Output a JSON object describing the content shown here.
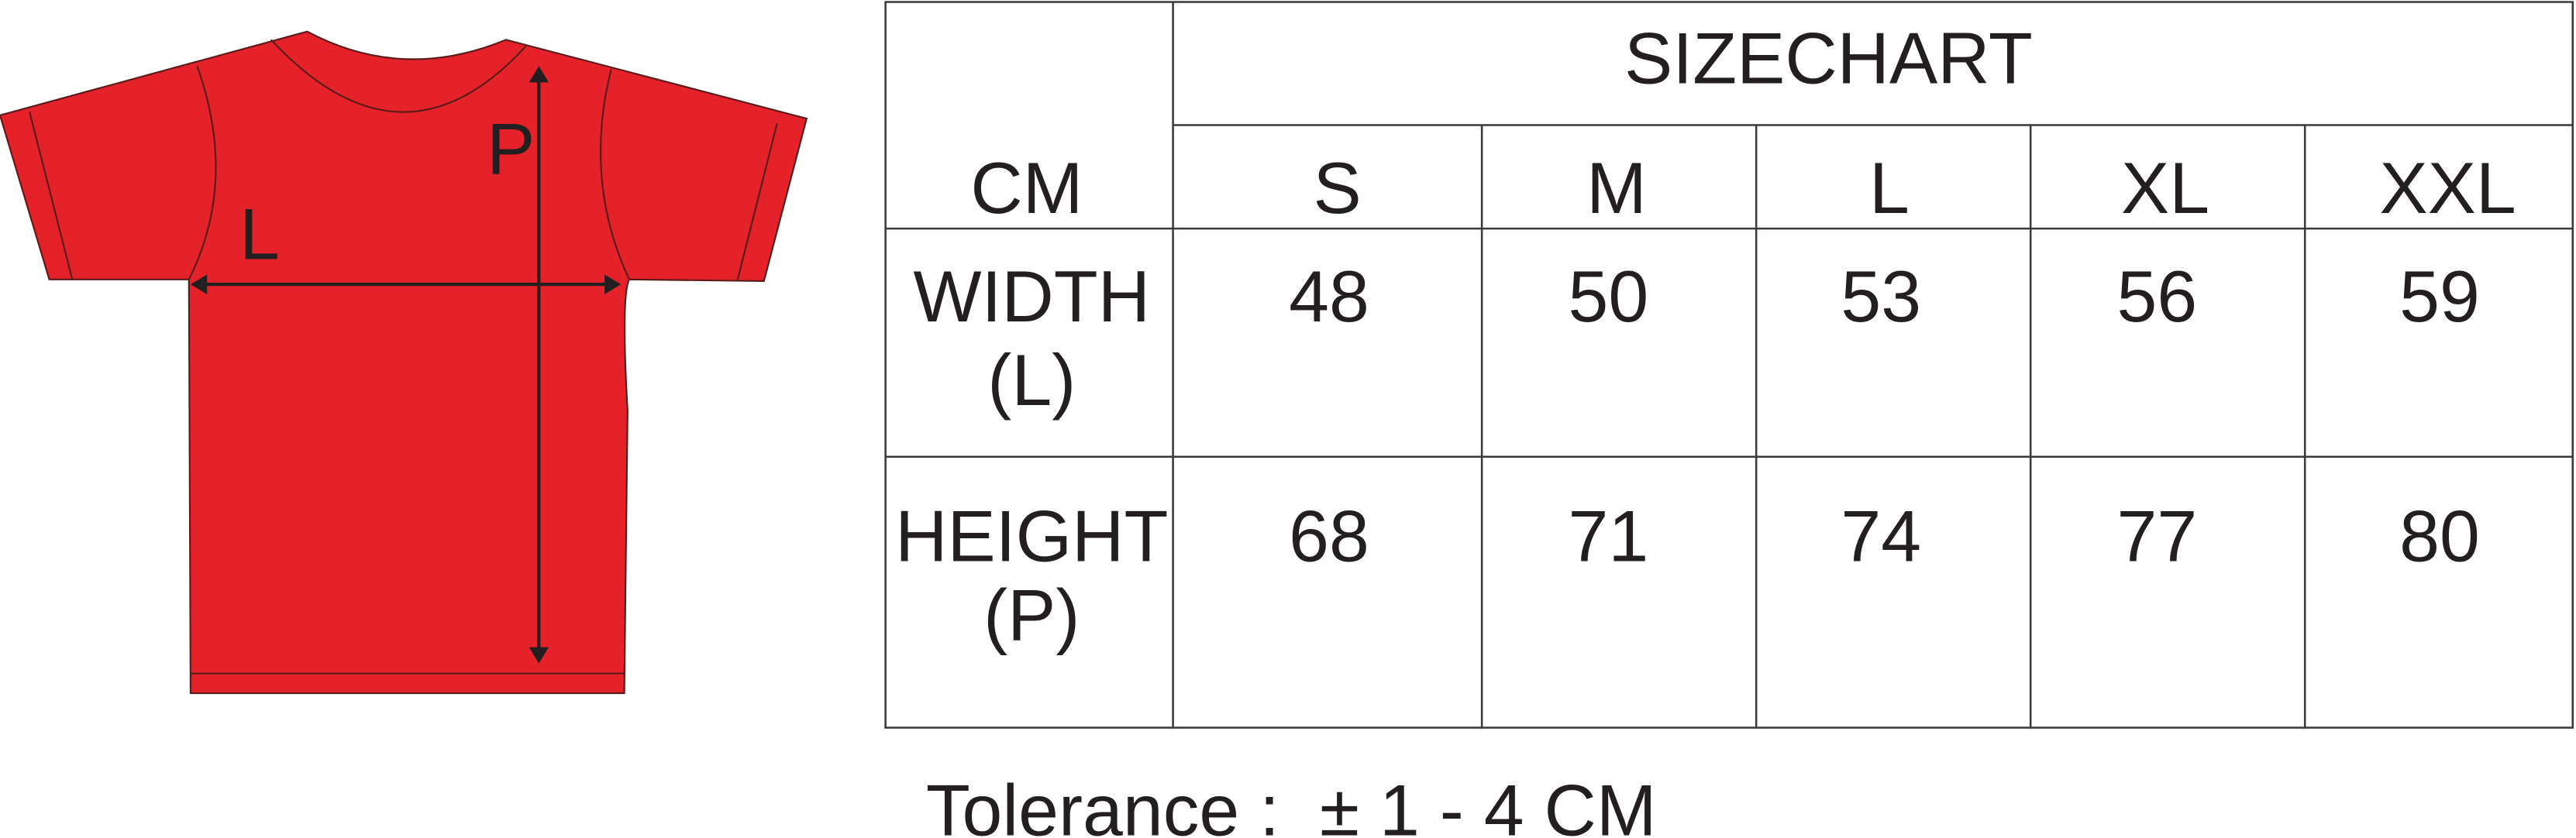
{
  "diagram": {
    "height_label": "P",
    "width_label": "L"
  },
  "table": {
    "title": "SIZECHART",
    "unit": "CM",
    "sizes": [
      "S",
      "M",
      "L",
      "XL",
      "XXL"
    ],
    "rows": [
      {
        "label": [
          "WIDTH",
          "(L)"
        ],
        "values": [
          "48",
          "50",
          "53",
          "56",
          "59"
        ]
      },
      {
        "label": [
          "HEIGHT",
          "(P)"
        ],
        "values": [
          "68",
          "71",
          "74",
          "77",
          "80"
        ]
      }
    ]
  },
  "footer": {
    "tolerance": "Tolerance :  ± 1 - 4 CM"
  }
}
